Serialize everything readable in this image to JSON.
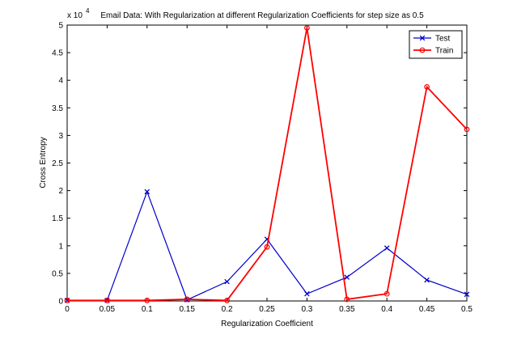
{
  "chart_data": {
    "type": "line",
    "title": "Email Data: With Regularization at different Regularization Coefficients for step size as 0.5",
    "xlabel": "Regularization Coefficient",
    "ylabel": "Cross Entropy",
    "y_multiplier_label": "x 10",
    "y_multiplier_exponent": "4",
    "xlim": [
      0,
      0.5
    ],
    "ylim": [
      0,
      5
    ],
    "x_ticks": [
      0,
      0.05,
      0.1,
      0.15,
      0.2,
      0.25,
      0.3,
      0.35,
      0.4,
      0.45,
      0.5
    ],
    "x_tick_labels": [
      "0",
      "0.05",
      "0.1",
      "0.15",
      "0.2",
      "0.25",
      "0.3",
      "0.35",
      "0.4",
      "0.45",
      "0.5"
    ],
    "y_ticks": [
      0,
      0.5,
      1,
      1.5,
      2,
      2.5,
      3,
      3.5,
      4,
      4.5,
      5
    ],
    "y_tick_labels": [
      "0",
      "0.5",
      "1",
      "1.5",
      "2",
      "2.5",
      "3",
      "3.5",
      "4",
      "4.5",
      "5"
    ],
    "grid": false,
    "legend_position": "top-right",
    "x": [
      0,
      0.05,
      0.1,
      0.15,
      0.2,
      0.25,
      0.3,
      0.35,
      0.4,
      0.45,
      0.5
    ],
    "series": [
      {
        "name": "Test",
        "color": "#0000cc",
        "marker": "x",
        "values": [
          0.01,
          0.01,
          1.98,
          0.02,
          0.35,
          1.12,
          0.13,
          0.43,
          0.96,
          0.38,
          0.12
        ]
      },
      {
        "name": "Train",
        "color": "#ff0000",
        "marker": "o",
        "values": [
          0.01,
          0.01,
          0.01,
          0.03,
          0.01,
          0.98,
          4.95,
          0.03,
          0.13,
          3.88,
          3.11
        ]
      }
    ]
  }
}
